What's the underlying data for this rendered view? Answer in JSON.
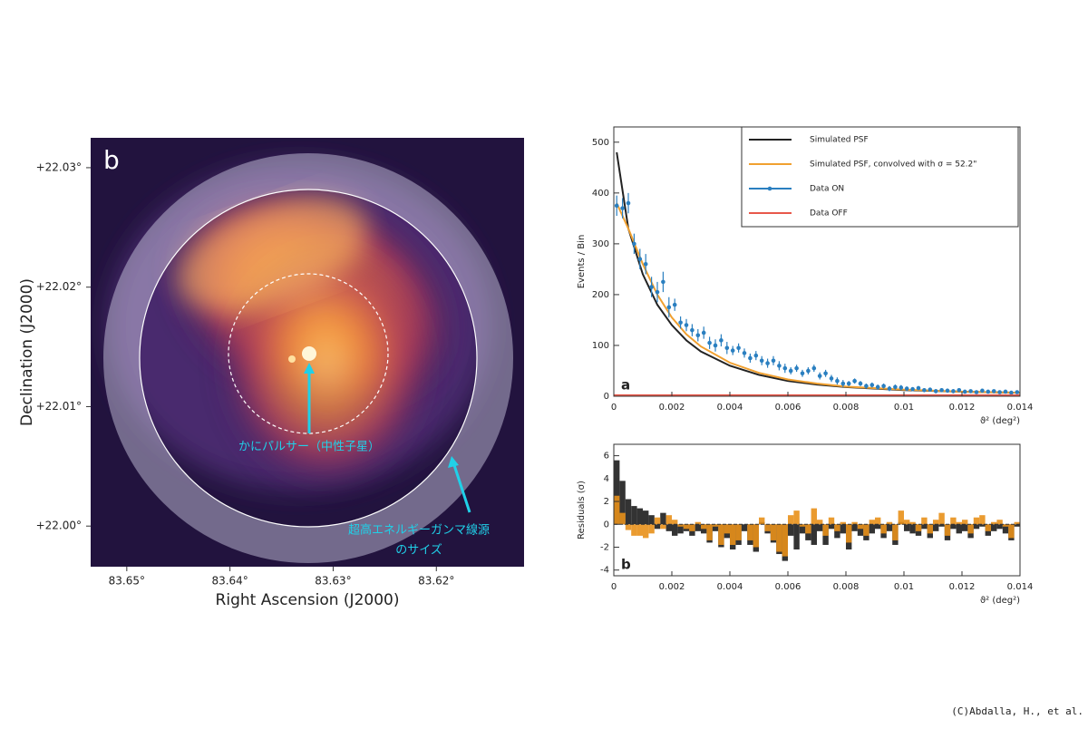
{
  "chart_data": [
    {
      "type": "image",
      "panel_label": "b",
      "x_label": "Right Ascension (J2000)",
      "y_label": "Declination (J2000)",
      "xlim": [
        83.6535,
        83.6115
      ],
      "ylim": [
        21.9966,
        22.0325
      ],
      "xticks": [
        {
          "value": 83.65,
          "label": "83.65°"
        },
        {
          "value": 83.64,
          "label": "83.64°"
        },
        {
          "value": 83.63,
          "label": "83.63°"
        },
        {
          "value": 83.62,
          "label": "83.62°"
        }
      ],
      "yticks": [
        {
          "value": 22.03,
          "label": "+22.03°"
        },
        {
          "value": 22.02,
          "label": "+22.02°"
        },
        {
          "value": 22.01,
          "label": "+22.01°"
        },
        {
          "value": 22.0,
          "label": "+22.00°"
        }
      ],
      "annotations": [
        "かにパルサー（中性子星）",
        "超高エネルギーガンマ線源",
        "のサイズ"
      ]
    },
    {
      "type": "line",
      "panel_label": "a",
      "x_label": "ϑ² (deg²)",
      "y_label": "Events / Bin",
      "xlim": [
        0,
        0.014
      ],
      "ylim": [
        0,
        530
      ],
      "xticks": [
        0,
        0.002,
        0.004,
        0.006,
        0.008,
        0.01,
        0.012,
        0.014
      ],
      "yticks": [
        0,
        100,
        200,
        300,
        400,
        500
      ],
      "legend": "upper right",
      "series": [
        {
          "name": "Simulated PSF",
          "color": "#222222",
          "x": [
            0.0001,
            0.0005,
            0.001,
            0.0015,
            0.002,
            0.0025,
            0.003,
            0.004,
            0.005,
            0.006,
            0.007,
            0.008,
            0.01,
            0.012,
            0.014
          ],
          "values": [
            480,
            330,
            240,
            180,
            140,
            110,
            88,
            60,
            42,
            30,
            23,
            18,
            12,
            9,
            7
          ]
        },
        {
          "name": "Simulated PSF, convolved with σ = 52.2\"",
          "color": "#f0a030",
          "x": [
            0.0001,
            0.0005,
            0.001,
            0.0015,
            0.002,
            0.0025,
            0.003,
            0.004,
            0.005,
            0.006,
            0.007,
            0.008,
            0.01,
            0.012,
            0.014
          ],
          "values": [
            380,
            330,
            260,
            200,
            155,
            122,
            98,
            66,
            46,
            33,
            25,
            19,
            13,
            9,
            7
          ]
        },
        {
          "name": "Data ON",
          "color": "#2a7fc0",
          "marker": "point",
          "x": [
            0.0001,
            0.0003,
            0.0005,
            0.0007,
            0.0009,
            0.0011,
            0.0013,
            0.0015,
            0.0017,
            0.0019,
            0.0021,
            0.0023,
            0.0025,
            0.0027,
            0.0029,
            0.0031,
            0.0033,
            0.0035,
            0.0037,
            0.0039,
            0.0041,
            0.0043,
            0.0045,
            0.0047,
            0.0049,
            0.0051,
            0.0053,
            0.0055,
            0.0057,
            0.0059,
            0.0061,
            0.0063,
            0.0065,
            0.0067,
            0.0069,
            0.0071,
            0.0073,
            0.0075,
            0.0077,
            0.0079,
            0.0081,
            0.0083,
            0.0085,
            0.0087,
            0.0089,
            0.0091,
            0.0093,
            0.0095,
            0.0097,
            0.0099,
            0.0101,
            0.0103,
            0.0105,
            0.0107,
            0.0109,
            0.0111,
            0.0113,
            0.0115,
            0.0117,
            0.0119,
            0.0121,
            0.0123,
            0.0125,
            0.0127,
            0.0129,
            0.0131,
            0.0133,
            0.0135,
            0.0137,
            0.0139
          ],
          "values": [
            375,
            370,
            380,
            300,
            270,
            260,
            215,
            205,
            225,
            175,
            180,
            145,
            140,
            130,
            120,
            125,
            105,
            100,
            110,
            95,
            90,
            95,
            85,
            75,
            80,
            70,
            65,
            70,
            60,
            55,
            50,
            55,
            45,
            50,
            55,
            40,
            45,
            35,
            30,
            25,
            25,
            30,
            25,
            20,
            22,
            18,
            20,
            15,
            18,
            17,
            15,
            14,
            16,
            12,
            13,
            10,
            12,
            11,
            10,
            12,
            9,
            10,
            8,
            11,
            9,
            10,
            8,
            9,
            7,
            8
          ],
          "errors": [
            20,
            20,
            20,
            20,
            20,
            20,
            20,
            20,
            20,
            20,
            12,
            12,
            12,
            12,
            12,
            12,
            12,
            12,
            12,
            12,
            9,
            9,
            9,
            9,
            9,
            9,
            9,
            9,
            9,
            9,
            7,
            7,
            7,
            7,
            7,
            7,
            7,
            7,
            7,
            7,
            5,
            5,
            5,
            5,
            5,
            5,
            5,
            5,
            5,
            5,
            4,
            4,
            4,
            4,
            4,
            4,
            4,
            4,
            4,
            4,
            3,
            3,
            3,
            3,
            3,
            3,
            3,
            3,
            3,
            3
          ]
        },
        {
          "name": "Data OFF",
          "color": "#e8584a",
          "x": [
            0,
            0.014
          ],
          "values": [
            2,
            2
          ]
        }
      ]
    },
    {
      "type": "bar",
      "panel_label": "b",
      "x_label": "ϑ² (deg²)",
      "y_label": "Residuals (σ)",
      "xlim": [
        0,
        0.014
      ],
      "ylim": [
        -4.5,
        7
      ],
      "xticks": [
        0,
        0.002,
        0.004,
        0.006,
        0.008,
        0.01,
        0.012,
        0.014
      ],
      "yticks": [
        -4,
        -2,
        0,
        2,
        4,
        6
      ],
      "x": [
        0.0001,
        0.0003,
        0.0005,
        0.0007,
        0.0009,
        0.0011,
        0.0013,
        0.0015,
        0.0017,
        0.0019,
        0.0021,
        0.0023,
        0.0025,
        0.0027,
        0.0029,
        0.0031,
        0.0033,
        0.0035,
        0.0037,
        0.0039,
        0.0041,
        0.0043,
        0.0045,
        0.0047,
        0.0049,
        0.0051,
        0.0053,
        0.0055,
        0.0057,
        0.0059,
        0.0061,
        0.0063,
        0.0065,
        0.0067,
        0.0069,
        0.0071,
        0.0073,
        0.0075,
        0.0077,
        0.0079,
        0.0081,
        0.0083,
        0.0085,
        0.0087,
        0.0089,
        0.0091,
        0.0093,
        0.0095,
        0.0097,
        0.0099,
        0.0101,
        0.0103,
        0.0105,
        0.0107,
        0.0109,
        0.0111,
        0.0113,
        0.0115,
        0.0117,
        0.0119,
        0.0121,
        0.0123,
        0.0125,
        0.0127,
        0.0129,
        0.0131,
        0.0133,
        0.0135,
        0.0137,
        0.0139
      ],
      "series": [
        {
          "color": "#333333",
          "values": [
            5.6,
            3.8,
            2.2,
            1.6,
            1.4,
            1.2,
            0.8,
            -0.4,
            1.0,
            -0.6,
            -1.0,
            -0.8,
            -0.6,
            -1.0,
            -0.6,
            -0.8,
            -1.6,
            -0.6,
            -2.0,
            -1.2,
            -2.2,
            -1.8,
            -0.6,
            -1.8,
            -2.4,
            0.2,
            -0.8,
            -1.6,
            -2.6,
            -3.2,
            -1.0,
            -2.2,
            -0.8,
            -1.4,
            -1.8,
            -0.6,
            -1.8,
            -0.4,
            -1.2,
            -0.8,
            -2.2,
            -0.6,
            -1.0,
            -1.4,
            -0.8,
            -0.4,
            -1.2,
            -0.6,
            -1.8,
            0.2,
            -0.6,
            -0.8,
            -1.0,
            -0.4,
            -1.2,
            -0.6,
            -0.2,
            -1.4,
            -0.4,
            -0.8,
            -0.6,
            -1.2,
            -0.4,
            -0.2,
            -1.0,
            -0.6,
            -0.4,
            -0.8,
            -1.4,
            -0.2
          ]
        },
        {
          "color": "#e8901a",
          "values": [
            2.5,
            1.0,
            -0.5,
            -1.0,
            -1.0,
            -1.2,
            -0.8,
            0.6,
            -0.4,
            0.8,
            0.4,
            -0.2,
            -0.4,
            -0.6,
            0.2,
            -0.4,
            -1.4,
            -0.2,
            -1.8,
            -0.8,
            -1.8,
            -1.4,
            0.0,
            -1.4,
            -2.0,
            0.6,
            -0.6,
            -1.4,
            -2.4,
            -2.8,
            0.8,
            1.2,
            -0.2,
            -0.8,
            1.4,
            0.4,
            -1.0,
            0.6,
            -0.6,
            0.2,
            -1.6,
            0.2,
            -0.4,
            -1.0,
            0.4,
            0.6,
            -0.8,
            0.2,
            -1.4,
            1.2,
            0.4,
            0.2,
            -0.6,
            0.6,
            -0.8,
            0.4,
            1.0,
            -1.0,
            0.6,
            0.2,
            0.4,
            -0.8,
            0.6,
            0.8,
            -0.6,
            0.2,
            0.4,
            -0.2,
            -1.2,
            0.2
          ]
        }
      ]
    }
  ],
  "credit": "(C)Abdalla, H., et al."
}
